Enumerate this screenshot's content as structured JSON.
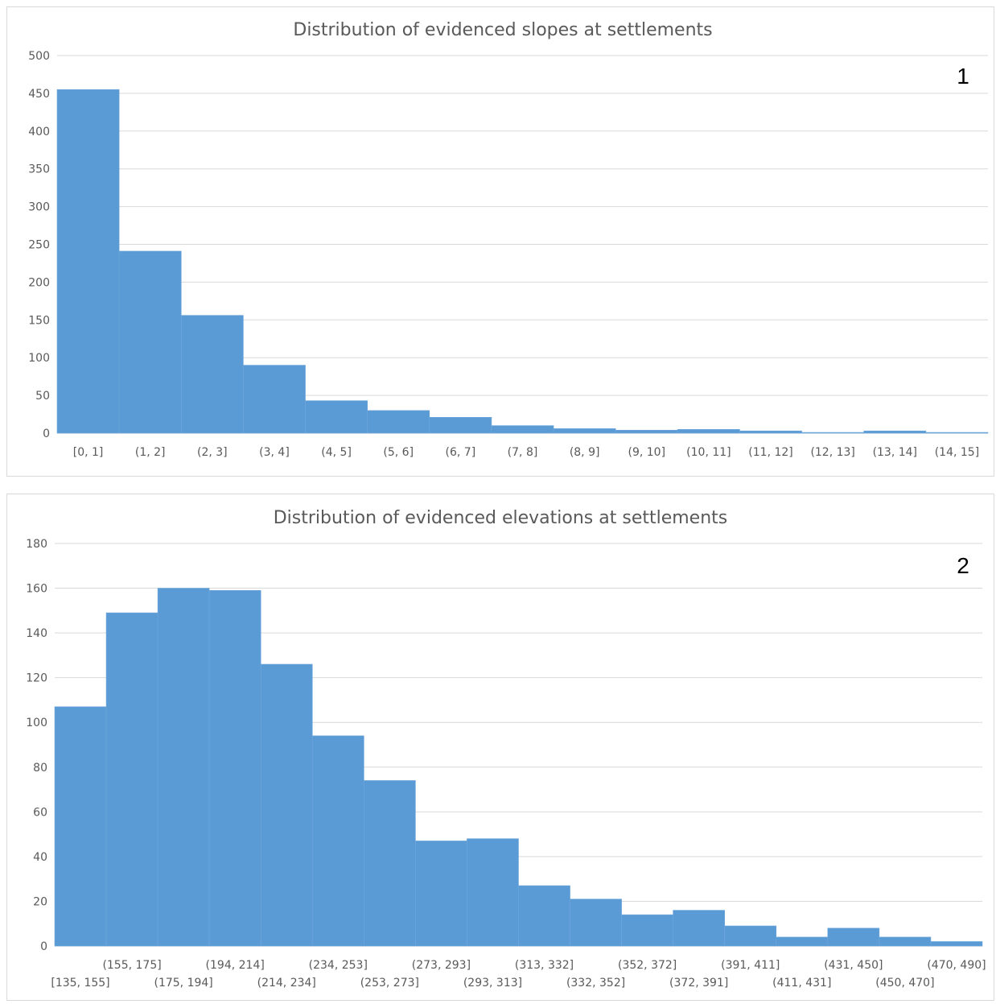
{
  "chart_data": [
    {
      "type": "bar",
      "title": "Distribution of evidenced slopes at settlements",
      "panel_number": "1",
      "categories": [
        "[0, 1]",
        "(1, 2]",
        "(2, 3]",
        "(3, 4]",
        "(4, 5]",
        "(5, 6]",
        "(6, 7]",
        "(7, 8]",
        "(8, 9]",
        "(9, 10]",
        "(10, 11]",
        "(11, 12]",
        "(12, 13]",
        "(13, 14]",
        "(14, 15]"
      ],
      "values": [
        455,
        241,
        156,
        90,
        43,
        30,
        21,
        10,
        6,
        4,
        5,
        3,
        1,
        3,
        1
      ],
      "ylim": [
        0,
        500
      ],
      "yticks": [
        0,
        50,
        100,
        150,
        200,
        250,
        300,
        350,
        400,
        450,
        500
      ],
      "xlabel": "",
      "ylabel": "",
      "grid": true,
      "color": "#5b9bd5"
    },
    {
      "type": "bar",
      "title": "Distribution of evidenced elevations at settlements",
      "panel_number": "2",
      "categories": [
        "[135, 155]",
        "(155, 175]",
        "(175, 194]",
        "(194, 214]",
        "(214, 234]",
        "(234, 253]",
        "(253, 273]",
        "(273, 293]",
        "(293, 313]",
        "(313, 332]",
        "(332, 352]",
        "(352, 372]",
        "(372, 391]",
        "(391, 411]",
        "(411, 431]",
        "(431, 450]",
        "(450, 470]",
        "(470, 490]"
      ],
      "values": [
        107,
        149,
        160,
        159,
        126,
        94,
        74,
        47,
        48,
        27,
        21,
        14,
        16,
        9,
        4,
        8,
        4,
        2
      ],
      "ylim": [
        0,
        180
      ],
      "yticks": [
        0,
        20,
        40,
        60,
        80,
        100,
        120,
        140,
        160,
        180
      ],
      "xlabel": "",
      "ylabel": "",
      "grid": true,
      "color": "#5b9bd5"
    }
  ]
}
